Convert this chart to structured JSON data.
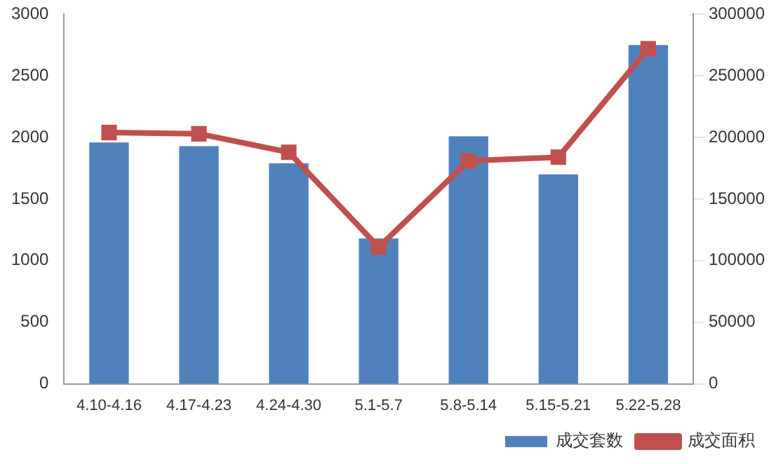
{
  "chart_data": {
    "type": "bar",
    "categories": [
      "4.10-4.16",
      "4.17-4.23",
      "4.24-4.30",
      "5.1-5.7",
      "5.8-5.14",
      "5.15-5.21",
      "5.22-5.28"
    ],
    "series": [
      {
        "name": "成交套数",
        "color": "#4f81bd",
        "values": [
          1960,
          1930,
          1790,
          1180,
          2010,
          1700,
          2750
        ]
      },
      {
        "name": "成交面积",
        "type": "line",
        "axis": "y2",
        "color": "#c0504d",
        "marker": "square",
        "values": [
          204000,
          203000,
          188000,
          111000,
          181000,
          184000,
          272000
        ]
      }
    ],
    "ylim": [
      0,
      3000
    ],
    "yticks": [
      0,
      500,
      1000,
      1500,
      2000,
      2500,
      3000
    ],
    "y2lim": [
      0,
      300000
    ],
    "y2ticks": [
      0,
      50000,
      100000,
      150000,
      200000,
      250000,
      300000
    ],
    "grid": false,
    "legend": "bottom right"
  }
}
